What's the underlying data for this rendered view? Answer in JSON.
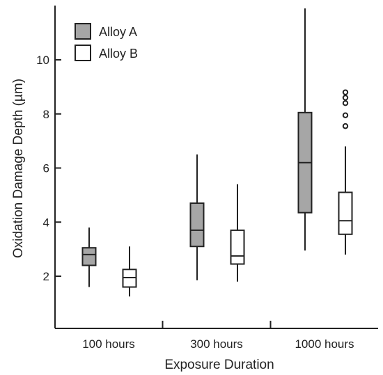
{
  "chart_data": {
    "type": "boxplot",
    "xlabel": "Exposure Duration",
    "ylabel": "Oxidation Damage Depth (µm)",
    "ylim": [
      0,
      12
    ],
    "yticks": [
      2,
      4,
      6,
      8,
      10
    ],
    "categories": [
      "100 hours",
      "300 hours",
      "1000 hours"
    ],
    "legend_position": "top-left",
    "series": [
      {
        "name": "Alloy A",
        "color": "#a6a6a6",
        "boxes": [
          {
            "whisker_low": 1.6,
            "q1": 2.4,
            "median": 2.8,
            "q3": 3.05,
            "whisker_high": 3.8,
            "outliers": []
          },
          {
            "whisker_low": 1.85,
            "q1": 3.1,
            "median": 3.7,
            "q3": 4.7,
            "whisker_high": 6.5,
            "outliers": []
          },
          {
            "whisker_low": 2.95,
            "q1": 4.35,
            "median": 6.2,
            "q3": 8.05,
            "whisker_high": 11.9,
            "outliers": []
          }
        ]
      },
      {
        "name": "Alloy B",
        "color": "#ffffff",
        "boxes": [
          {
            "whisker_low": 1.25,
            "q1": 1.6,
            "median": 1.95,
            "q3": 2.25,
            "whisker_high": 3.1,
            "outliers": []
          },
          {
            "whisker_low": 1.8,
            "q1": 2.45,
            "median": 2.75,
            "q3": 3.7,
            "whisker_high": 5.4,
            "outliers": []
          },
          {
            "whisker_low": 2.8,
            "q1": 3.55,
            "median": 4.05,
            "q3": 5.1,
            "whisker_high": 6.8,
            "outliers": [
              7.55,
              7.95,
              8.4,
              8.6,
              8.8
            ]
          }
        ]
      }
    ]
  }
}
